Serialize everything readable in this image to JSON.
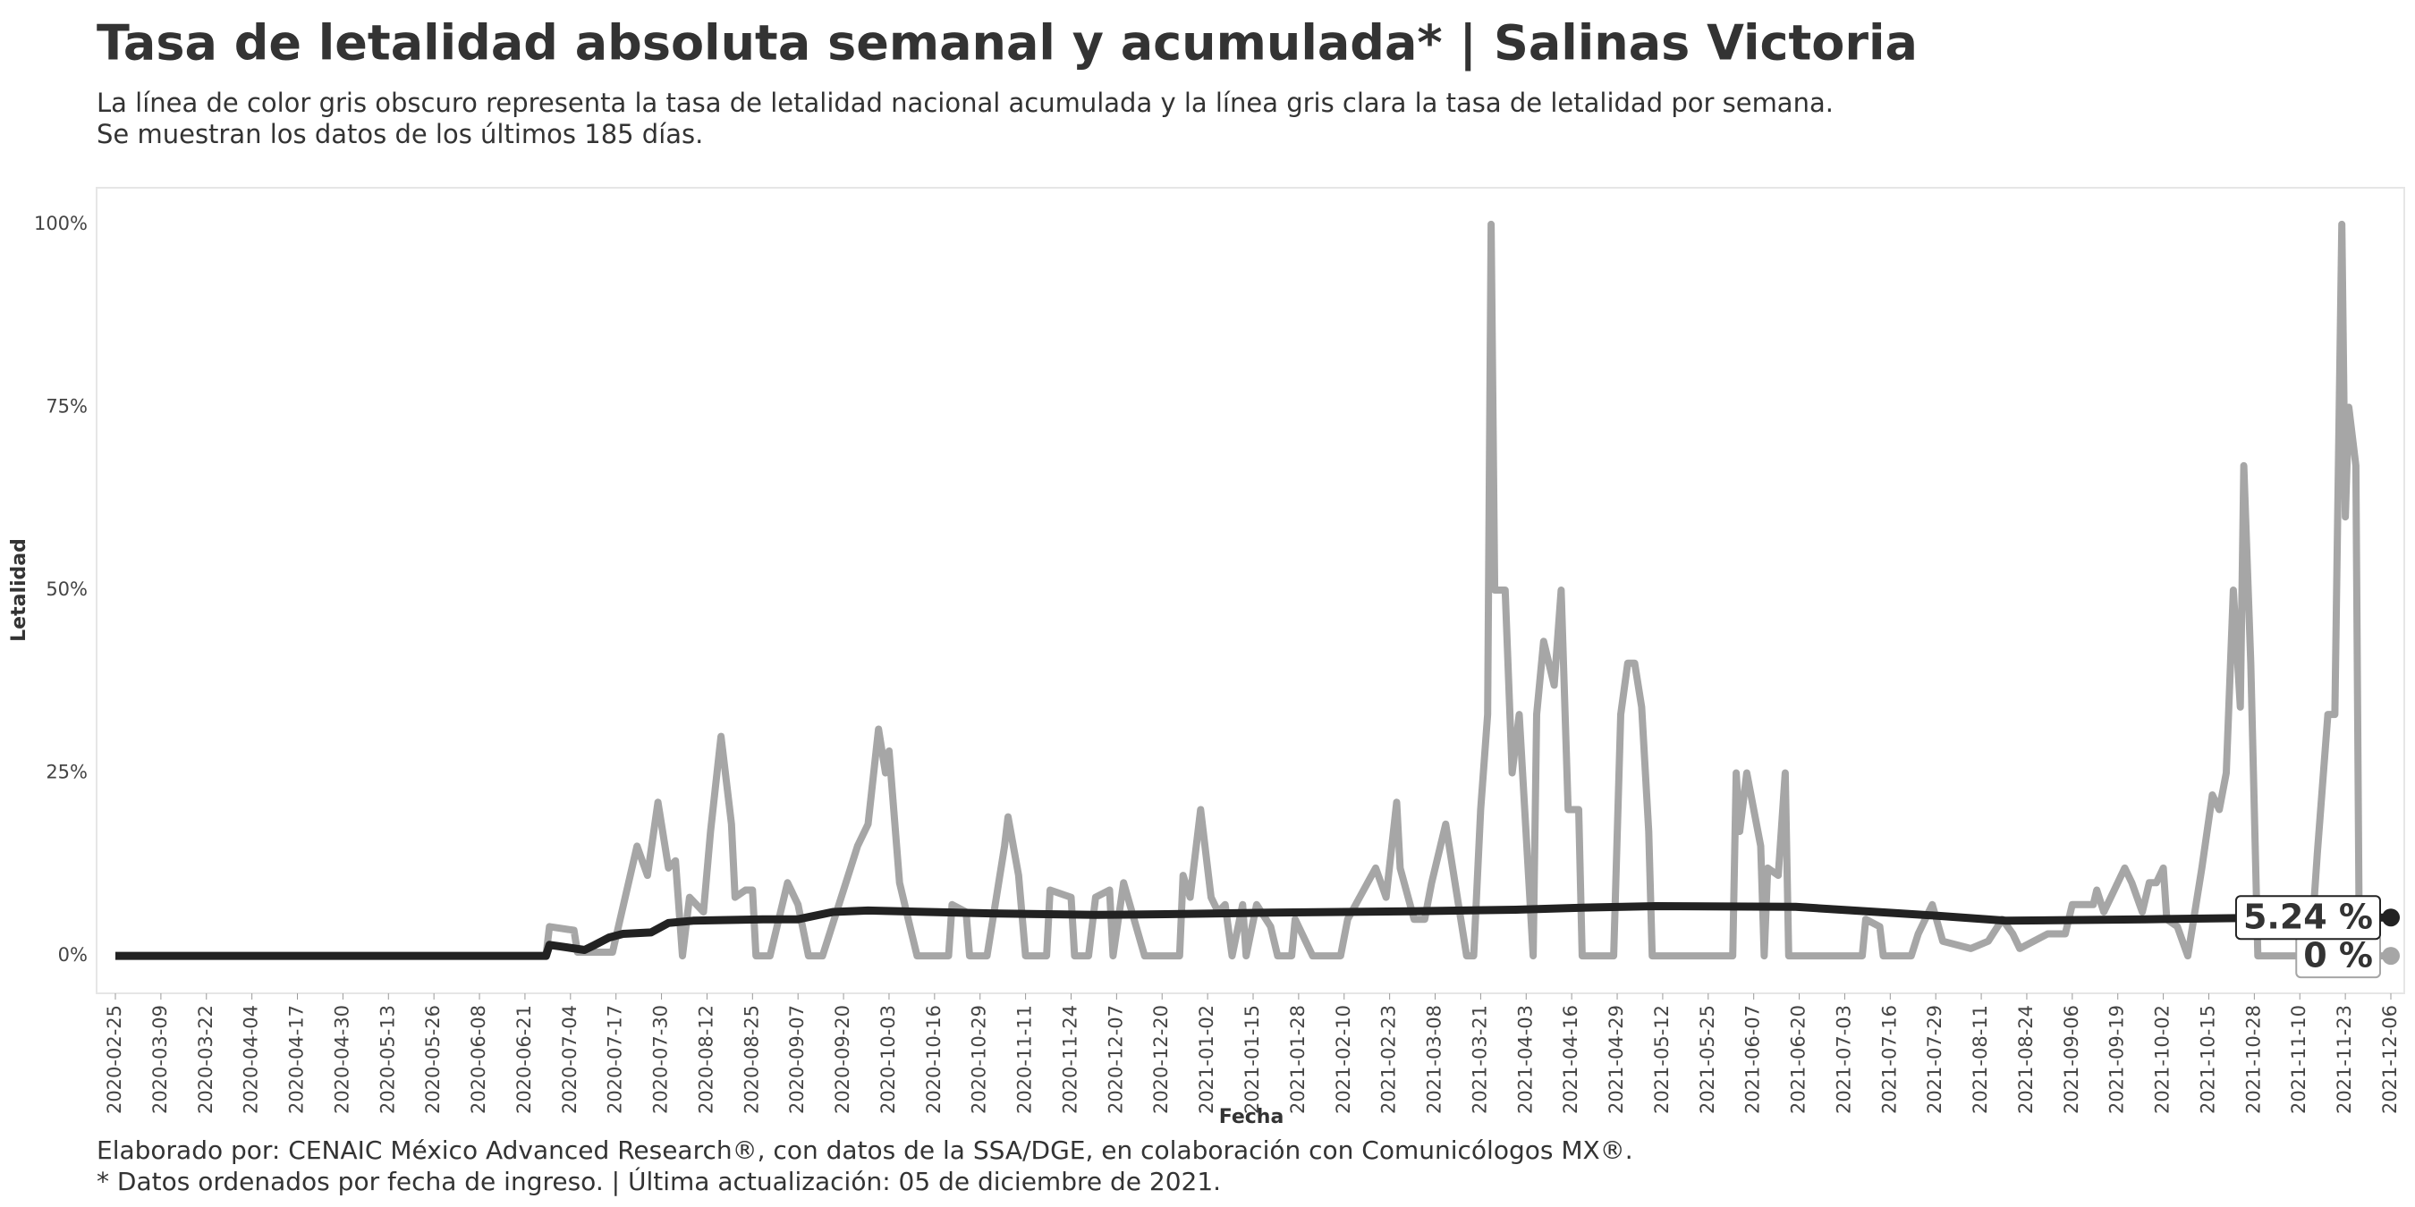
{
  "chart_data": {
    "type": "line",
    "title": "Tasa de letalidad absoluta semanal y acumulada* | Salinas Victoria",
    "subtitle": [
      "La línea de color gris obscuro representa la tasa de letalidad nacional acumulada y la línea gris clara la tasa de letalidad por semana.",
      "Se muestran los datos de los últimos 185 días."
    ],
    "x_label": "Fecha",
    "y_label": "Letalidad",
    "caption": [
      "Elaborado por: CENAIC México Advanced Research®, con datos de la SSA/DGE, en colaboración con Comunicólogos MX®.",
      "* Datos ordenados por fecha de ingreso. | Última actualización: 05 de diciembre de 2021."
    ],
    "xlim": [
      "2020-02-25",
      "2021-12-06"
    ],
    "xticks": [
      "2020-02-25",
      "2020-03-09",
      "2020-03-22",
      "2020-04-04",
      "2020-04-17",
      "2020-04-30",
      "2020-05-13",
      "2020-05-26",
      "2020-06-08",
      "2020-06-21",
      "2020-07-04",
      "2020-07-17",
      "2020-07-30",
      "2020-08-12",
      "2020-08-25",
      "2020-09-07",
      "2020-09-20",
      "2020-10-03",
      "2020-10-16",
      "2020-10-29",
      "2020-11-11",
      "2020-11-24",
      "2020-12-07",
      "2020-12-20",
      "2021-01-02",
      "2021-01-15",
      "2021-01-28",
      "2021-02-10",
      "2021-02-23",
      "2021-03-08",
      "2021-03-21",
      "2021-04-03",
      "2021-04-16",
      "2021-04-29",
      "2021-05-12",
      "2021-05-25",
      "2021-06-07",
      "2021-06-20",
      "2021-07-03",
      "2021-07-16",
      "2021-07-29",
      "2021-08-11",
      "2021-08-24",
      "2021-09-06",
      "2021-09-19",
      "2021-10-02",
      "2021-10-15",
      "2021-10-28",
      "2021-11-10",
      "2021-11-23",
      "2021-12-06"
    ],
    "ylim": [
      -5,
      105
    ],
    "yticks": [
      {
        "value": 0,
        "label": "0%"
      },
      {
        "value": 25,
        "label": "25%"
      },
      {
        "value": 50,
        "label": "50%"
      },
      {
        "value": 75,
        "label": "75%"
      },
      {
        "value": 100,
        "label": "100%"
      }
    ],
    "grid": false,
    "series": [
      {
        "color": "#a6a6a6",
        "width": 8,
        "x": [
          "2020-02-25",
          "2020-06-27",
          "2020-06-28",
          "2020-07-05",
          "2020-07-06",
          "2020-07-16",
          "2020-07-23",
          "2020-07-26",
          "2020-07-29",
          "2020-08-01",
          "2020-08-03",
          "2020-08-05",
          "2020-08-07",
          "2020-08-11",
          "2020-08-13",
          "2020-08-16",
          "2020-08-19",
          "2020-08-20",
          "2020-08-23",
          "2020-08-25",
          "2020-08-26",
          "2020-08-30",
          "2020-09-04",
          "2020-09-07",
          "2020-09-10",
          "2020-09-14",
          "2020-09-20",
          "2020-09-24",
          "2020-09-27",
          "2020-09-30",
          "2020-10-02",
          "2020-10-03",
          "2020-10-06",
          "2020-10-09",
          "2020-10-11",
          "2020-10-20",
          "2020-10-21",
          "2020-10-25",
          "2020-10-26",
          "2020-10-31",
          "2020-11-05",
          "2020-11-06",
          "2020-11-09",
          "2020-11-11",
          "2020-11-17",
          "2020-11-18",
          "2020-11-24",
          "2020-11-25",
          "2020-11-29",
          "2020-12-01",
          "2020-12-05",
          "2020-12-06",
          "2020-12-09",
          "2020-12-12",
          "2020-12-15",
          "2020-12-25",
          "2020-12-26",
          "2020-12-28",
          "2020-12-31",
          "2021-01-03",
          "2021-01-05",
          "2021-01-07",
          "2021-01-09",
          "2021-01-12",
          "2021-01-13",
          "2021-01-16",
          "2021-01-20",
          "2021-01-22",
          "2021-01-26",
          "2021-01-27",
          "2021-02-01",
          "2021-02-09",
          "2021-02-11",
          "2021-02-19",
          "2021-02-22",
          "2021-02-25",
          "2021-02-26",
          "2021-03-02",
          "2021-03-05",
          "2021-03-07",
          "2021-03-11",
          "2021-03-13",
          "2021-03-17",
          "2021-03-19",
          "2021-03-21",
          "2021-03-23",
          "2021-03-24",
          "2021-03-25",
          "2021-03-28",
          "2021-03-30",
          "2021-04-01",
          "2021-04-05",
          "2021-04-06",
          "2021-04-08",
          "2021-04-11",
          "2021-04-13",
          "2021-04-15",
          "2021-04-18",
          "2021-04-19",
          "2021-04-28",
          "2021-04-30",
          "2021-05-02",
          "2021-05-04",
          "2021-05-06",
          "2021-05-08",
          "2021-05-09",
          "2021-06-01",
          "2021-06-02",
          "2021-06-03",
          "2021-06-05",
          "2021-06-07",
          "2021-06-09",
          "2021-06-10",
          "2021-06-11",
          "2021-06-14",
          "2021-06-16",
          "2021-06-17",
          "2021-07-08",
          "2021-07-09",
          "2021-07-13",
          "2021-07-14",
          "2021-07-22",
          "2021-07-24",
          "2021-07-28",
          "2021-07-31",
          "2021-08-08",
          "2021-08-13",
          "2021-08-17",
          "2021-08-20",
          "2021-08-22",
          "2021-08-26",
          "2021-08-30",
          "2021-09-04",
          "2021-09-06",
          "2021-09-12",
          "2021-09-13",
          "2021-09-15",
          "2021-09-18",
          "2021-09-21",
          "2021-09-23",
          "2021-09-26",
          "2021-09-28",
          "2021-09-30",
          "2021-10-02",
          "2021-10-03",
          "2021-10-06",
          "2021-10-09",
          "2021-10-13",
          "2021-10-16",
          "2021-10-18",
          "2021-10-20",
          "2021-10-22",
          "2021-10-24",
          "2021-10-25",
          "2021-10-27",
          "2021-10-29",
          "2021-11-13",
          "2021-11-15",
          "2021-11-18",
          "2021-11-20",
          "2021-11-22",
          "2021-11-23",
          "2021-11-24",
          "2021-11-26",
          "2021-11-27",
          "2021-12-06"
        ],
        "values": [
          0,
          0,
          4,
          3.5,
          0.5,
          0.5,
          15,
          11,
          21,
          12,
          13,
          0,
          8,
          6,
          17,
          30,
          18,
          8,
          9,
          9,
          0,
          0,
          10,
          7,
          0,
          0,
          9,
          15,
          18,
          31,
          25,
          28,
          10,
          4,
          0,
          0,
          7,
          6,
          0,
          0,
          15,
          19,
          11,
          0,
          0,
          9,
          8,
          0,
          0,
          8,
          9,
          0,
          10,
          5,
          0,
          0,
          11,
          8,
          20,
          8,
          6,
          7,
          0,
          7,
          0,
          7,
          4,
          0,
          0,
          5,
          0,
          0,
          5,
          12,
          8,
          21,
          12,
          5,
          5,
          10,
          18,
          12,
          0,
          0,
          20,
          33,
          100,
          50,
          50,
          25,
          33,
          0,
          33,
          43,
          37,
          50,
          20,
          20,
          0,
          0,
          33,
          40,
          40,
          34,
          17,
          0,
          0,
          25,
          17,
          25,
          20,
          15,
          0,
          12,
          11,
          25,
          0,
          0,
          5,
          4,
          0,
          0,
          3,
          7,
          2,
          1,
          2,
          5,
          3,
          1,
          2,
          3,
          3,
          7,
          7,
          9,
          6,
          9,
          12,
          10,
          6,
          10,
          10,
          12,
          5,
          4,
          0,
          12,
          22,
          20,
          25,
          50,
          34,
          67,
          40,
          0,
          0,
          14,
          33,
          33,
          100,
          60,
          75,
          67,
          0,
          0
        ],
        "end_label": {
          "value": 0,
          "label": "0 %"
        }
      },
      {
        "color": "#222222",
        "width": 9,
        "x": [
          "2020-02-25",
          "2020-06-27",
          "2020-06-28",
          "2020-07-08",
          "2020-07-11",
          "2020-07-15",
          "2020-07-19",
          "2020-07-27",
          "2020-08-01",
          "2020-08-08",
          "2020-08-28",
          "2020-09-07",
          "2020-09-17",
          "2020-09-27",
          "2020-11-01",
          "2020-12-01",
          "2020-12-21",
          "2021-01-20",
          "2021-03-01",
          "2021-03-31",
          "2021-04-20",
          "2021-05-10",
          "2021-06-19",
          "2021-07-29",
          "2021-08-18",
          "2021-09-27",
          "2021-11-06",
          "2021-12-06"
        ],
        "values": [
          0,
          0,
          1.5,
          0.8,
          1.5,
          2.5,
          3,
          3.2,
          4.5,
          4.8,
          5,
          5,
          6,
          6.2,
          5.8,
          5.6,
          5.7,
          5.9,
          6.1,
          6.3,
          6.6,
          6.8,
          6.7,
          5.5,
          4.8,
          5,
          5.24,
          5.24
        ],
        "end_label": {
          "value": 5.24,
          "label": "5.24 %"
        }
      }
    ]
  }
}
